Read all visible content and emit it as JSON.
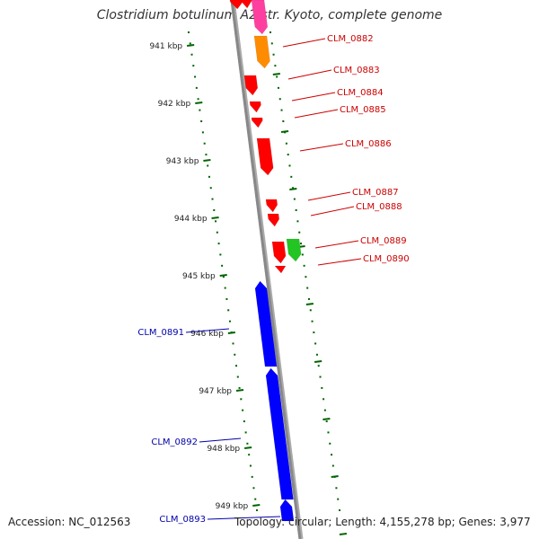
{
  "title": "Clostridium botulinum A2 str. Kyoto, complete genome",
  "footer": {
    "accession": "Accession: NC_012563",
    "topology": "Topology: circular; Length: 4,155,278 bp; Genes: 3,977"
  },
  "ticks": [
    "941 kbp",
    "942 kbp",
    "943 kbp",
    "944 kbp",
    "945 kbp",
    "946 kbp",
    "947 kbp",
    "948 kbp",
    "949 kbp"
  ],
  "colors": {
    "forward": "#ff0000",
    "reverse": "#0000ff",
    "orange": "#ff8c00",
    "green": "#22c522",
    "pink": "#ff3fa0",
    "backbone": "#888888",
    "tick": "#006400",
    "label_forward": "#cc0000",
    "label_reverse": "#0000aa"
  },
  "genes": [
    {
      "name": "CLM_0882",
      "strand": "forward",
      "color": "orange"
    },
    {
      "name": "CLM_0883",
      "strand": "forward",
      "color": "forward"
    },
    {
      "name": "CLM_0884",
      "strand": "forward",
      "color": "forward"
    },
    {
      "name": "CLM_0885",
      "strand": "forward",
      "color": "forward"
    },
    {
      "name": "CLM_0886",
      "strand": "forward",
      "color": "forward"
    },
    {
      "name": "CLM_0887",
      "strand": "forward",
      "color": "forward"
    },
    {
      "name": "CLM_0888",
      "strand": "forward",
      "color": "forward"
    },
    {
      "name": "CLM_0889",
      "strand": "forward",
      "color": "green"
    },
    {
      "name": "CLM_0890",
      "strand": "forward",
      "color": "forward"
    },
    {
      "name": "CLM_0891",
      "strand": "reverse",
      "color": "reverse"
    },
    {
      "name": "CLM_0892",
      "strand": "reverse",
      "color": "reverse"
    },
    {
      "name": "CLM_0893",
      "strand": "reverse",
      "color": "reverse"
    }
  ]
}
